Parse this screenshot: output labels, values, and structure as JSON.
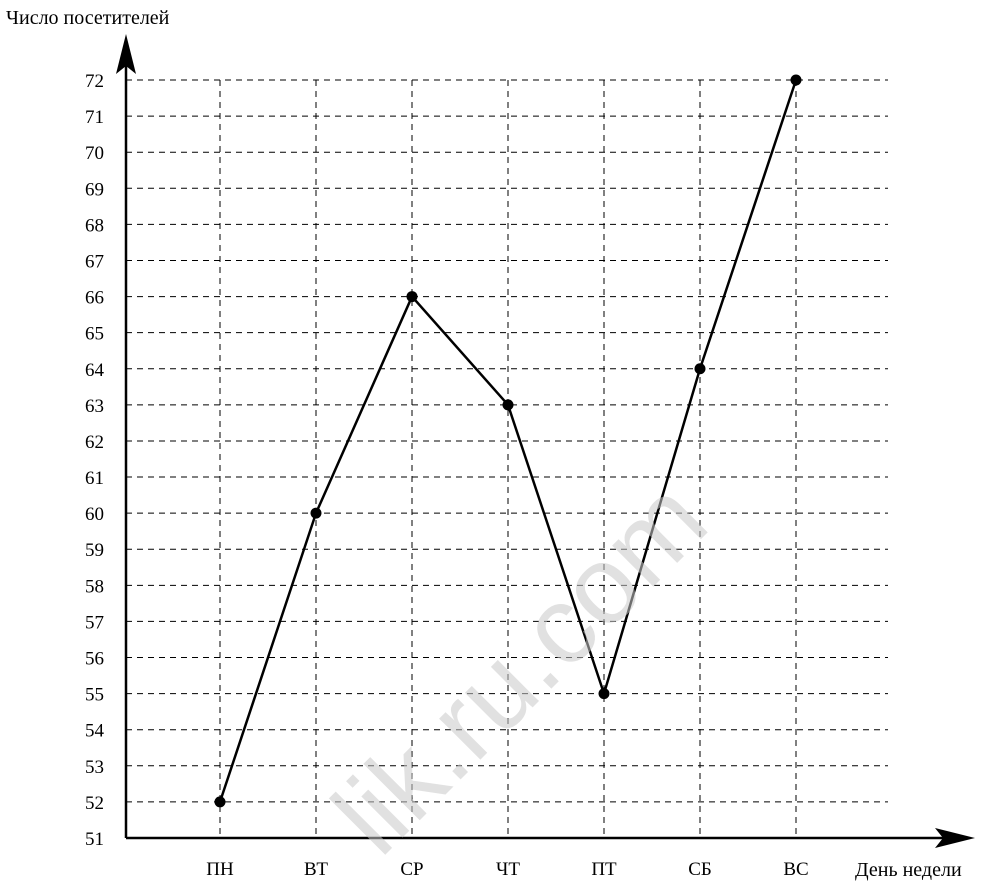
{
  "chart_data": {
    "type": "line",
    "ylabel": "Число посетителей",
    "xlabel": "День недели",
    "categories": [
      "ПН",
      "ВТ",
      "СР",
      "ЧТ",
      "ПТ",
      "СБ",
      "ВС"
    ],
    "values": [
      52,
      60,
      66,
      63,
      55,
      64,
      72
    ],
    "ylim": [
      51,
      72
    ],
    "yticks": [
      51,
      52,
      53,
      54,
      55,
      56,
      57,
      58,
      59,
      60,
      61,
      62,
      63,
      64,
      65,
      66,
      67,
      68,
      69,
      70,
      71,
      72
    ],
    "grid": true,
    "line_color": "#000000",
    "marker": "filled-circle"
  },
  "watermark": {
    "text": "lik.ru.com",
    "color": "#c8c8c8"
  }
}
